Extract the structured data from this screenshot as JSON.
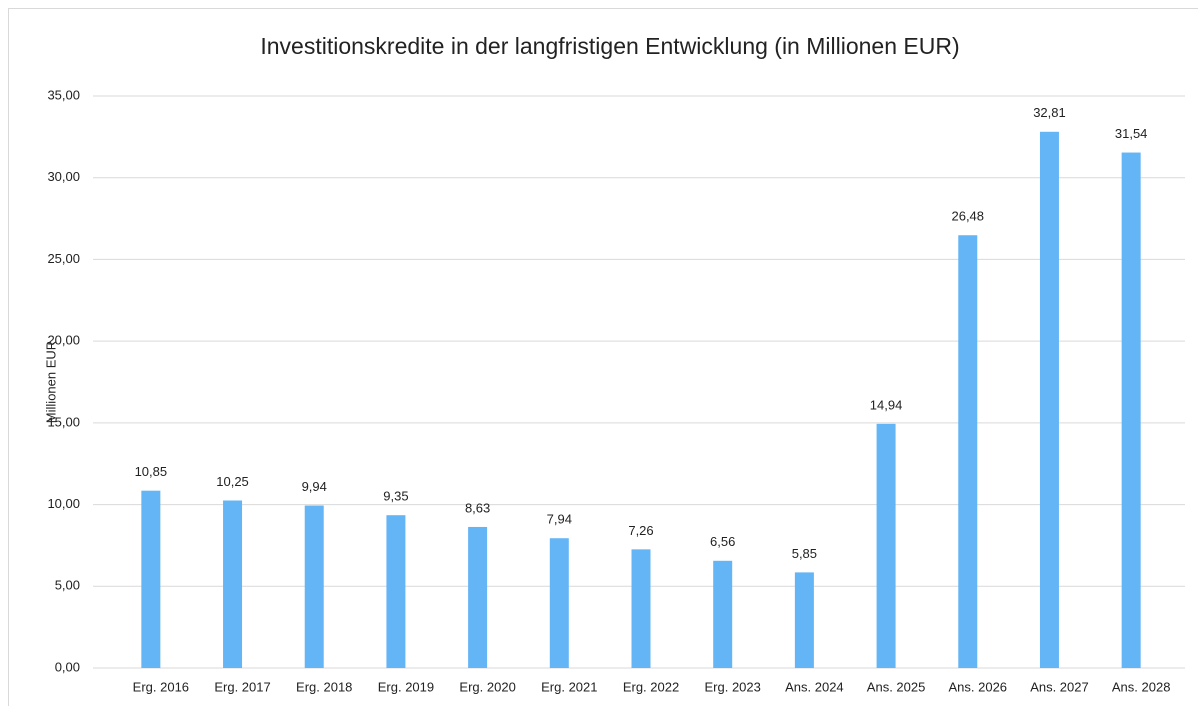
{
  "chart_data": {
    "type": "bar",
    "title": "Investitionskredite in der langfristigen Entwicklung (in Millionen EUR)",
    "y_label": "Millionen EUR",
    "categories": [
      "Erg. 2016",
      "Erg. 2017",
      "Erg. 2018",
      "Erg. 2019",
      "Erg. 2020",
      "Erg. 2021",
      "Erg. 2022",
      "Erg. 2023",
      "Ans. 2024",
      "Ans. 2025",
      "Ans. 2026",
      "Ans. 2027",
      "Ans. 2028"
    ],
    "values": [
      10.85,
      10.25,
      9.94,
      9.35,
      8.63,
      7.94,
      7.26,
      6.56,
      5.85,
      14.94,
      26.48,
      32.81,
      31.54
    ],
    "value_labels": [
      "10,85",
      "10,25",
      "9,94",
      "9,35",
      "8,63",
      "7,94",
      "7,26",
      "6,56",
      "5,85",
      "14,94",
      "26,48",
      "32,81",
      "31,54"
    ],
    "color": "#64b5f6",
    "ylim": [
      0,
      35
    ],
    "yticks": [
      {
        "value": 0,
        "label": "0,00"
      },
      {
        "value": 5,
        "label": "5,00"
      },
      {
        "value": 10,
        "label": "10,00"
      },
      {
        "value": 15,
        "label": "15,00"
      },
      {
        "value": 20,
        "label": "20,00"
      },
      {
        "value": 25,
        "label": "25,00"
      },
      {
        "value": 30,
        "label": "30,00"
      },
      {
        "value": 35,
        "label": "35,00"
      }
    ],
    "grid": true
  }
}
